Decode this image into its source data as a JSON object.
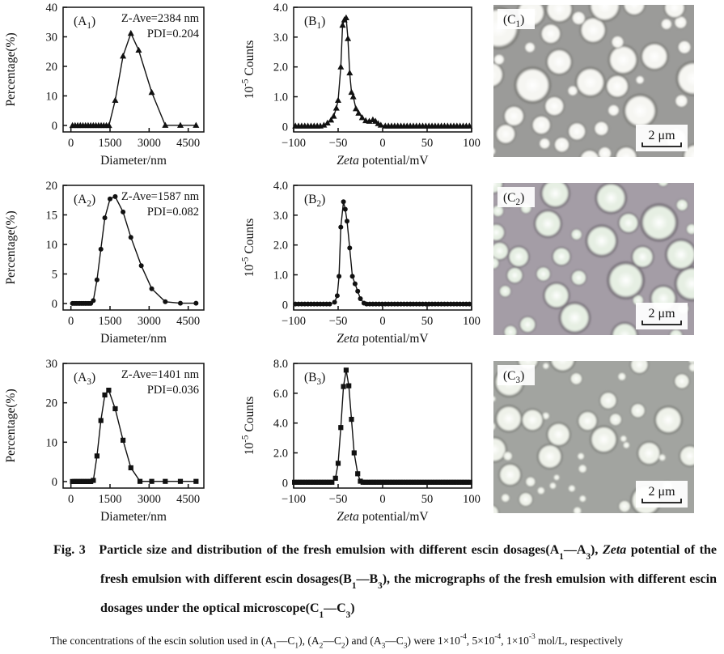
{
  "figure": {
    "caption": "Fig. 3   Particle size and distribution of the fresh emulsion with different escin dosages(A_{1}—A_{3}), *Zeta* potential of the fresh emulsion with different escin dosages(B_{1}—B_{3}), the micrographs of the fresh emulsion with different escin dosages under the optical microscope(C_{1}—C_{3})",
    "footnote": "The concentrations of the escin solution used in (A_{1}—C_{1}), (A_{2}—C_{2}) and (A_{3}—C_{3}) were 1×10^{-4}, 5×10^{-4}, 1×10^{-3} mol/L, respectively"
  },
  "chart_data": [
    {
      "id": "A1",
      "type": "line",
      "panel_label": "(A_{1})",
      "marker": "triangle",
      "annotation": [
        "Z-Ave=2384 nm",
        "PDI=0.204"
      ],
      "xlabel": "Diameter/nm",
      "ylabel": "Percentage(%)",
      "xlim": [
        -300,
        5100
      ],
      "ylim": [
        -2.2,
        40
      ],
      "xtick_vals": [
        0,
        1500,
        3000,
        4500
      ],
      "xtick_labels": [
        "0",
        "1500",
        "3000",
        "4500"
      ],
      "ytick_vals": [
        0,
        10,
        20,
        30,
        40
      ],
      "ytick_labels": [
        "0",
        "10",
        "20",
        "30",
        "40"
      ],
      "flat": [
        {
          "from": 60,
          "to": 1500,
          "step": 100,
          "y": 0
        }
      ],
      "points": [
        [
          1700,
          8.5
        ],
        [
          2000,
          23.5
        ],
        [
          2300,
          31.2
        ],
        [
          2600,
          25.5
        ],
        [
          3100,
          11.2
        ],
        [
          3620,
          0.05
        ],
        [
          4200,
          0.05
        ],
        [
          4800,
          0.05
        ]
      ]
    },
    {
      "id": "B1",
      "type": "line",
      "panel_label": "(B_{1})",
      "marker": "triangle",
      "annotation": [],
      "xlabel": "*Zeta* potential/mV",
      "ylabel": "10^{-5} Counts",
      "xlim": [
        -100,
        100
      ],
      "ylim": [
        -0.18,
        4.0
      ],
      "xtick_vals": [
        -100,
        -50,
        0,
        50,
        100
      ],
      "xtick_labels": [
        "−100",
        "−50",
        "0",
        "50",
        "100"
      ],
      "ytick_vals": [
        0,
        1.0,
        2.0,
        3.0,
        4.0
      ],
      "ytick_labels": [
        "0",
        "1.0",
        "2.0",
        "3.0",
        "4.0"
      ],
      "flat": [
        {
          "from": -98,
          "to": -70,
          "step": 3.5,
          "y": 0.02
        },
        {
          "from": 3,
          "to": 99,
          "step": 3.5,
          "y": 0.02
        }
      ],
      "points": [
        [
          -66,
          0.05
        ],
        [
          -62,
          0.12
        ],
        [
          -58,
          0.22
        ],
        [
          -55,
          0.35
        ],
        [
          -52,
          0.62
        ],
        [
          -50,
          0.88
        ],
        [
          -47,
          2.0
        ],
        [
          -45,
          3.4
        ],
        [
          -43,
          3.58
        ],
        [
          -41,
          3.65
        ],
        [
          -39,
          2.95
        ],
        [
          -37,
          1.8
        ],
        [
          -35,
          1.15
        ],
        [
          -33,
          1.0
        ],
        [
          -30,
          0.6
        ],
        [
          -27,
          0.45
        ],
        [
          -23,
          0.3
        ],
        [
          -19,
          0.2
        ],
        [
          -15,
          0.18
        ],
        [
          -11,
          0.23
        ],
        [
          -8,
          0.18
        ],
        [
          -5,
          0.1
        ],
        [
          -2,
          0.05
        ]
      ]
    },
    {
      "id": "A2",
      "type": "line",
      "panel_label": "(A_{2})",
      "marker": "circle",
      "annotation": [
        "Z-Ave=1587 nm",
        "PDI=0.082"
      ],
      "xlabel": "Diameter/nm",
      "ylabel": "Percentage(%)",
      "xlim": [
        -300,
        5100
      ],
      "ylim": [
        -1.1,
        20
      ],
      "xtick_vals": [
        0,
        1500,
        3000,
        4500
      ],
      "xtick_labels": [
        "0",
        "1500",
        "3000",
        "4500"
      ],
      "ytick_vals": [
        0,
        5,
        10,
        15,
        20
      ],
      "ytick_labels": [
        "0",
        "5",
        "10",
        "15",
        "20"
      ],
      "flat": [
        {
          "from": 60,
          "to": 790,
          "step": 70,
          "y": 0.02
        }
      ],
      "points": [
        [
          860,
          0.5
        ],
        [
          1000,
          4.0
        ],
        [
          1150,
          9.2
        ],
        [
          1300,
          14.5
        ],
        [
          1500,
          17.7
        ],
        [
          1700,
          18.1
        ],
        [
          2000,
          15.5
        ],
        [
          2300,
          11.2
        ],
        [
          2700,
          6.4
        ],
        [
          3100,
          2.5
        ],
        [
          3620,
          0.3
        ],
        [
          4200,
          0.05
        ],
        [
          4800,
          0.05
        ]
      ]
    },
    {
      "id": "B2",
      "type": "line",
      "panel_label": "(B_{2})",
      "marker": "circle",
      "annotation": [],
      "xlabel": "*Zeta* potential/mV",
      "ylabel": "10^{-5} Counts",
      "xlim": [
        -100,
        100
      ],
      "ylim": [
        -0.18,
        4.0
      ],
      "xtick_vals": [
        -100,
        -50,
        0,
        50,
        100
      ],
      "xtick_labels": [
        "−100",
        "−50",
        "0",
        "50",
        "100"
      ],
      "ytick_vals": [
        0,
        1.0,
        2.0,
        3.0,
        4.0
      ],
      "ytick_labels": [
        "0",
        "1.0",
        "2.0",
        "3.0",
        "4.0"
      ],
      "flat": [
        {
          "from": -98,
          "to": -57,
          "step": 3.5,
          "y": 0.02
        },
        {
          "from": -18,
          "to": 99,
          "step": 3.5,
          "y": 0.02
        }
      ],
      "points": [
        [
          -54,
          0.08
        ],
        [
          -51,
          0.3
        ],
        [
          -49,
          0.95
        ],
        [
          -47,
          2.6
        ],
        [
          -44,
          3.45
        ],
        [
          -42,
          3.2
        ],
        [
          -40,
          2.8
        ],
        [
          -37,
          1.9
        ],
        [
          -34,
          0.95
        ],
        [
          -31,
          0.7
        ],
        [
          -28,
          0.45
        ],
        [
          -25,
          0.2
        ],
        [
          -21,
          0.05
        ]
      ]
    },
    {
      "id": "A3",
      "type": "line",
      "panel_label": "(A_{3})",
      "marker": "square",
      "annotation": [
        "Z-Ave=1401 nm",
        "PDI=0.036"
      ],
      "xlabel": "Diameter/nm",
      "ylabel": "Percentage(%)",
      "xlim": [
        -300,
        5100
      ],
      "ylim": [
        -1.65,
        30
      ],
      "xtick_vals": [
        0,
        1500,
        3000,
        4500
      ],
      "xtick_labels": [
        "0",
        "1500",
        "3000",
        "4500"
      ],
      "ytick_vals": [
        0,
        10,
        20,
        30
      ],
      "ytick_labels": [
        "0",
        "10",
        "20",
        "30"
      ],
      "flat": [
        {
          "from": 60,
          "to": 790,
          "step": 70,
          "y": 0.02
        }
      ],
      "points": [
        [
          860,
          0.3
        ],
        [
          1000,
          6.5
        ],
        [
          1150,
          15.5
        ],
        [
          1300,
          22.0
        ],
        [
          1450,
          23.2
        ],
        [
          1700,
          18.5
        ],
        [
          2000,
          10.5
        ],
        [
          2300,
          3.5
        ],
        [
          2650,
          0.05
        ],
        [
          3100,
          0.05
        ],
        [
          3620,
          0.05
        ],
        [
          4200,
          0.05
        ],
        [
          4800,
          0.05
        ]
      ]
    },
    {
      "id": "B3",
      "type": "line",
      "panel_label": "(B_{3})",
      "marker": "square",
      "annotation": [],
      "xlabel": "*Zeta* potential/mV",
      "ylabel": "10^{-5} Counts",
      "xlim": [
        -100,
        100
      ],
      "ylim": [
        -0.36,
        8.0
      ],
      "xtick_vals": [
        -100,
        -50,
        0,
        50,
        100
      ],
      "xtick_labels": [
        "−100",
        "−50",
        "0",
        "50",
        "100"
      ],
      "ytick_vals": [
        0,
        2.0,
        4.0,
        6.0,
        8.0
      ],
      "ytick_labels": [
        "0",
        "2.0",
        "4.0",
        "6.0",
        "8.0"
      ],
      "flat": [
        {
          "from": -99,
          "to": -56,
          "step": 3,
          "y": 0.03
        },
        {
          "from": -22,
          "to": 99,
          "step": 3,
          "y": 0.03
        }
      ],
      "points": [
        [
          -53,
          0.3
        ],
        [
          -50,
          1.3
        ],
        [
          -47,
          3.7
        ],
        [
          -44,
          6.45
        ],
        [
          -41,
          7.55
        ],
        [
          -38,
          6.5
        ],
        [
          -35,
          4.25
        ],
        [
          -32,
          2.0
        ],
        [
          -28,
          0.6
        ],
        [
          -25,
          0.1
        ]
      ]
    }
  ],
  "micrographs": [
    {
      "id": "C1",
      "panel_label": "(C_{1})",
      "scale_label": "2 μm",
      "bg": "#9b9b99",
      "droplet": "#f6f6f2",
      "rim": "#6f6f6a",
      "seed": 9,
      "count": 42,
      "rmin": 5,
      "rmax": 27
    },
    {
      "id": "C2",
      "panel_label": "(C_{2})",
      "scale_label": "2 μm",
      "bg": "#a49da6",
      "droplet": "#e6efe3",
      "rim": "#665f68",
      "seed": 31,
      "count": 36,
      "rmin": 7,
      "rmax": 25
    },
    {
      "id": "C3",
      "panel_label": "(C_{3})",
      "scale_label": "2 μm",
      "bg": "#a2a4a0",
      "droplet": "#eff2ea",
      "rim": "#6d6f6a",
      "seed": 52,
      "count": 46,
      "rmin": 4,
      "rmax": 22
    }
  ]
}
